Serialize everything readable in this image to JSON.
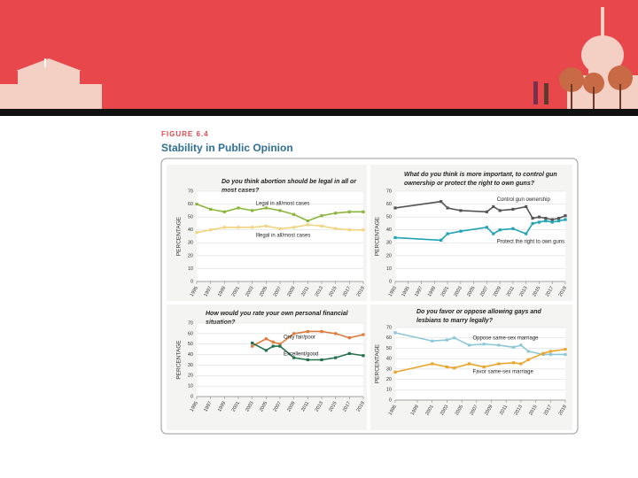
{
  "figure": {
    "label": "FIGURE 6.4",
    "title": "Stability in Public Opinion"
  },
  "chart_data": [
    {
      "type": "line",
      "title": "Do you think abortion should be legal in all or most cases?",
      "ylabel": "PERCENTAGE",
      "x": [
        1995,
        1997,
        1999,
        2001,
        2003,
        2005,
        2007,
        2009,
        2011,
        2013,
        2015,
        2017,
        2019
      ],
      "xlim": [
        1995,
        2019
      ],
      "xticks": [
        1995,
        1997,
        1999,
        2001,
        2003,
        2005,
        2007,
        2009,
        2011,
        2013,
        2015,
        2017,
        2019
      ],
      "ylim": [
        0,
        70
      ],
      "yticks": [
        0,
        10,
        20,
        30,
        40,
        50,
        60,
        70
      ],
      "grid": true,
      "series": [
        {
          "name": "Legal in all/most cases",
          "color": "#8bb53c",
          "values": [
            60,
            56,
            54,
            57,
            55,
            57,
            55,
            52,
            47,
            51,
            53,
            54,
            54
          ]
        },
        {
          "name": "Illegal in all/most cases",
          "color": "#f0d47e",
          "values": [
            38,
            40,
            42,
            42,
            42,
            43,
            41,
            42,
            44,
            43,
            41,
            40,
            40
          ]
        }
      ]
    },
    {
      "type": "line",
      "title": "What do you think is more important, to control gun ownership or protect the right to own guns?",
      "ylabel": "PERCENTAGE",
      "x": [
        1993,
        2000,
        2001,
        2003,
        2007,
        2008,
        2009,
        2011,
        2013,
        2014,
        2015,
        2016,
        2017,
        2018,
        2019
      ],
      "xlim": [
        1993,
        2019
      ],
      "xticks": [
        1993,
        1995,
        1997,
        1999,
        2001,
        2003,
        2005,
        2007,
        2009,
        2011,
        2013,
        2015,
        2017,
        2019
      ],
      "ylim": [
        0,
        70
      ],
      "yticks": [
        0,
        10,
        20,
        30,
        40,
        50,
        60,
        70
      ],
      "grid": true,
      "series": [
        {
          "name": "Control gun ownership",
          "color": "#555555",
          "values": [
            57,
            62,
            57,
            55,
            54,
            58,
            55,
            56,
            58,
            49,
            50,
            49,
            48,
            49,
            51
          ]
        },
        {
          "name": "Protect the right to own guns",
          "color": "#1fa3b5",
          "values": [
            34,
            32,
            37,
            39,
            42,
            37,
            40,
            41,
            37,
            45,
            46,
            47,
            46,
            47,
            48
          ]
        }
      ]
    },
    {
      "type": "line",
      "title": "How would you rate your own personal financial situation?",
      "ylabel": "PERCENTAGE",
      "x": [
        2003,
        2005,
        2006,
        2007,
        2009,
        2011,
        2013,
        2015,
        2017,
        2019
      ],
      "xlim": [
        1995,
        2019
      ],
      "xticks": [
        1995,
        1997,
        1999,
        2001,
        2003,
        2005,
        2007,
        2009,
        2011,
        2013,
        2015,
        2017,
        2019
      ],
      "ylim": [
        0,
        70
      ],
      "yticks": [
        0,
        10,
        20,
        30,
        40,
        50,
        60,
        70
      ],
      "grid": true,
      "series": [
        {
          "name": "Only fair/poor",
          "color": "#e07a3c",
          "values": [
            48,
            55,
            52,
            50,
            60,
            62,
            62,
            60,
            56,
            59
          ]
        },
        {
          "name": "Excellent/good",
          "color": "#23704a",
          "values": [
            51,
            44,
            48,
            48,
            37,
            35,
            35,
            37,
            41,
            39
          ]
        }
      ]
    },
    {
      "type": "line",
      "title": "Do you favor or oppose allowing gays and lesbians to marry legally?",
      "ylabel": "PERCENTAGE",
      "x": [
        1996,
        2001,
        2003,
        2004,
        2006,
        2008,
        2010,
        2012,
        2013,
        2014,
        2016,
        2017,
        2019
      ],
      "xlim": [
        1996,
        2019
      ],
      "xticks": [
        1996,
        1999,
        2001,
        2003,
        2005,
        2007,
        2009,
        2011,
        2013,
        2015,
        2017,
        2019
      ],
      "ylim": [
        0,
        70
      ],
      "yticks": [
        0,
        10,
        20,
        30,
        40,
        50,
        60,
        70
      ],
      "grid": true,
      "series": [
        {
          "name": "Oppose same-sex marriage",
          "color": "#8ec8d6",
          "values": [
            65,
            57,
            58,
            60,
            53,
            54,
            53,
            51,
            53,
            47,
            44,
            44,
            44
          ]
        },
        {
          "name": "Favor same-sex marriage",
          "color": "#eba52c",
          "values": [
            27,
            35,
            32,
            31,
            35,
            32,
            35,
            36,
            35,
            39,
            45,
            47,
            49
          ]
        }
      ]
    }
  ]
}
